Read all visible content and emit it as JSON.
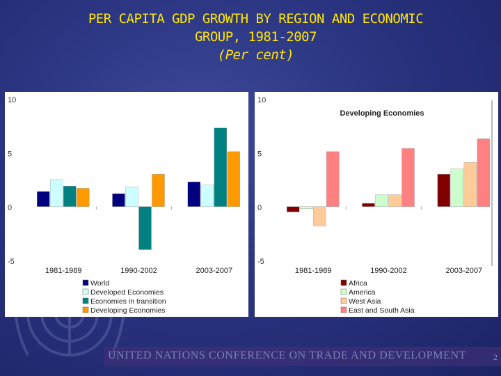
{
  "title_line1": "PER CAPITA GDP GROWTH  BY REGION AND ECONOMIC",
  "title_line2": "GROUP, 1981-2007",
  "title_line3": "(Per cent)",
  "footer": "UNITED NATIONS CONFERENCE ON TRADE AND DEVELOPMENT",
  "page_number": "2",
  "chart_data": [
    {
      "type": "bar",
      "title": "",
      "categories": [
        "1981-1989",
        "1990-2002",
        "2003-2007"
      ],
      "ylim": [
        -5,
        10
      ],
      "yticks": [
        "10",
        "5",
        "0",
        "-5"
      ],
      "legend_position": "bottom",
      "series": [
        {
          "name": "World",
          "color": "#000080",
          "values": [
            1.4,
            1.2,
            2.3
          ]
        },
        {
          "name": "Developed Economies",
          "color": "#ccffff",
          "values": [
            2.5,
            1.8,
            2.0
          ]
        },
        {
          "name": "Economies in transition",
          "color": "#008080",
          "values": [
            1.9,
            -4.0,
            7.3
          ]
        },
        {
          "name": "Developing Economies",
          "color": "#ff9900",
          "values": [
            1.7,
            3.0,
            5.1
          ]
        }
      ]
    },
    {
      "type": "bar",
      "title": "Developing Economies",
      "categories": [
        "1981-1989",
        "1990-2002",
        "2003-2007"
      ],
      "ylim": [
        -5,
        10
      ],
      "yticks": [
        "10",
        "5",
        "0",
        "-5"
      ],
      "legend_position": "bottom",
      "series": [
        {
          "name": "Africa",
          "color": "#800000",
          "values": [
            -0.5,
            0.3,
            3.0
          ]
        },
        {
          "name": "America",
          "color": "#ccffcc",
          "values": [
            -0.2,
            1.1,
            3.5
          ]
        },
        {
          "name": "West Asia",
          "color": "#ffcc99",
          "values": [
            -1.8,
            1.1,
            4.1
          ]
        },
        {
          "name": "East and South Asia",
          "color": "#ff8080",
          "values": [
            5.1,
            5.4,
            6.3
          ]
        }
      ]
    }
  ]
}
